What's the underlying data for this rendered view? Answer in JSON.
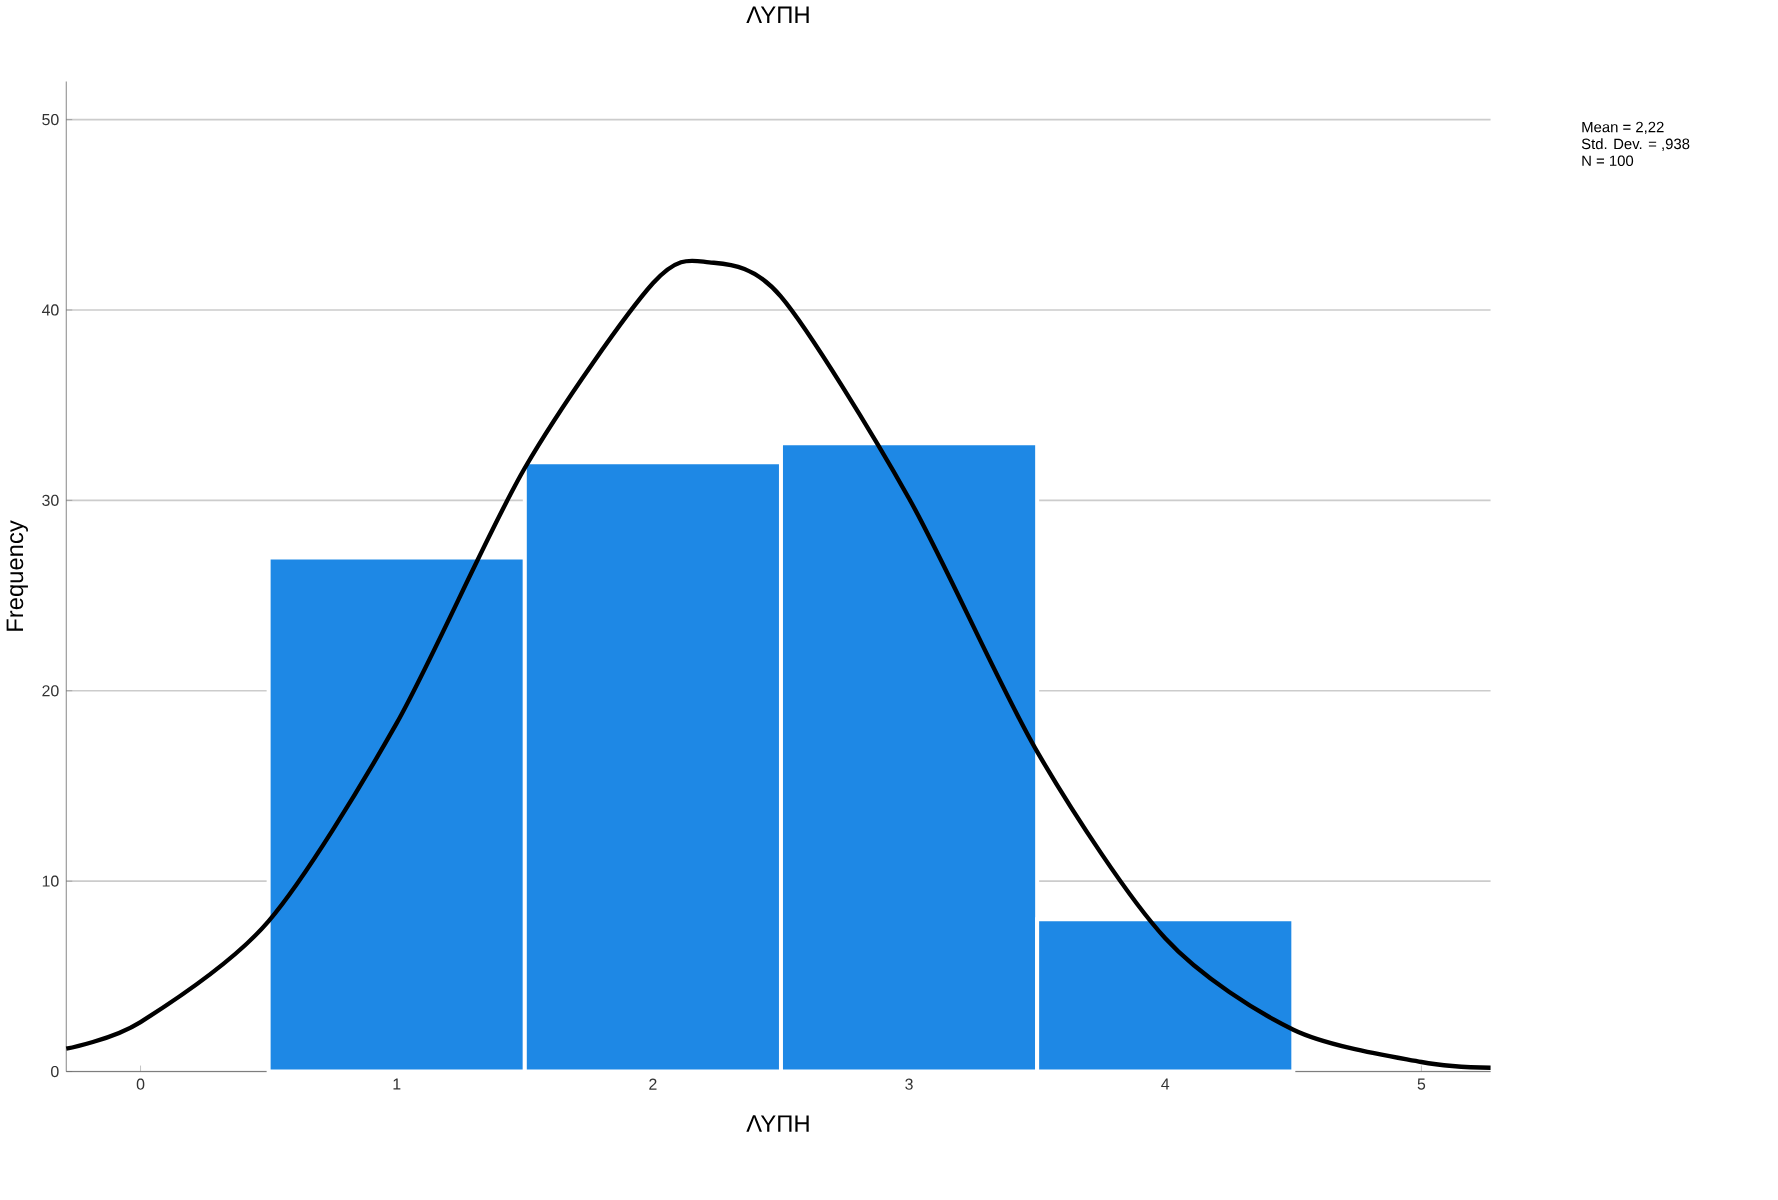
{
  "chart_data": {
    "type": "histogram",
    "title": "ΛΥΠΗ",
    "xlabel": "ΛΥΠΗ",
    "ylabel": "Frequency",
    "bins": [
      0.5,
      1.5,
      2.5,
      3.5,
      4.5
    ],
    "values": [
      27,
      32,
      33,
      8
    ],
    "color": "#1e88e5",
    "series": [
      {
        "type": "line",
        "color": "#000000",
        "x": [
          -0.29,
          0,
          0.5,
          1,
          1.5,
          2,
          2.22,
          2.5,
          3,
          3.5,
          4,
          4.5,
          5,
          5.27
        ],
        "values": [
          1.2,
          2.6,
          7.9,
          18.3,
          31.7,
          41.4,
          42.5,
          40.7,
          30.1,
          16.8,
          7.0,
          2.2,
          0.5,
          0.2
        ]
      }
    ],
    "xlim": [
      -0.29,
      5.27
    ],
    "ylim": [
      0,
      52
    ],
    "xticks": [
      0,
      1,
      2,
      3,
      4,
      5
    ],
    "yticks": [
      0,
      10,
      20,
      30,
      40,
      50
    ],
    "grid": "y",
    "annotations": [
      "Mean = 2,22",
      "Std. Dev. = ,938",
      "N = 100"
    ]
  }
}
